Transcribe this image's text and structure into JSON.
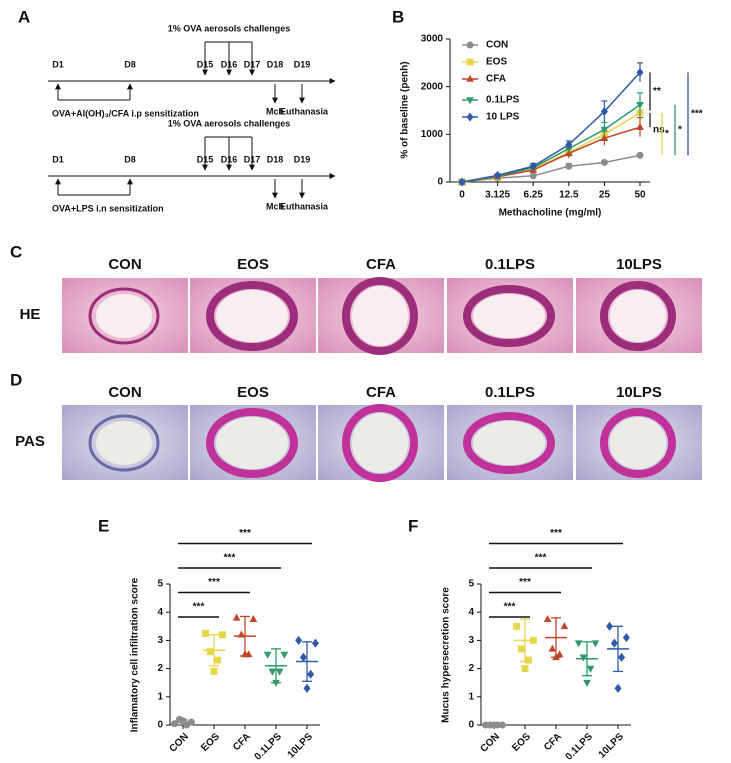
{
  "panel_labels": [
    "A",
    "B",
    "C",
    "D",
    "E",
    "F"
  ],
  "timelines": [
    {
      "days": [
        "D1",
        "D8",
        "D15",
        "D16",
        "D17",
        "D18",
        "D19"
      ],
      "challenge": "1% OVA aerosols challenges",
      "sensitization": "OVA+Al(OH)₃/CFA i.p sensitization",
      "readouts": [
        "Mch",
        "Euthanasia"
      ]
    },
    {
      "days": [
        "D1",
        "D8",
        "D15",
        "D16",
        "D17",
        "D18",
        "D19"
      ],
      "challenge": "1% OVA aerosols challenges",
      "sensitization": "OVA+LPS i.n sensitization",
      "readouts": [
        "Mch",
        "Euthanasia"
      ]
    }
  ],
  "histology": {
    "columns": [
      "CON",
      "EOS",
      "CFA",
      "0.1LPS",
      "10LPS"
    ],
    "rows": [
      "HE",
      "PAS"
    ]
  },
  "chart_data": [
    {
      "type": "line",
      "ylabel": "% of baseline (penh)",
      "xlabel": "Methacholine (mg/ml)",
      "categories": [
        "0",
        "3.125",
        "6.25",
        "12.5",
        "25",
        "50"
      ],
      "ylim": [
        0,
        3000
      ],
      "yticks": [
        0,
        1000,
        2000,
        3000
      ],
      "legend": "top-left",
      "series": [
        {
          "name": "CON",
          "color": "#8c8c8c",
          "marker": "circle",
          "values": [
            0,
            80,
            130,
            330,
            410,
            560
          ],
          "errors": [
            0,
            20,
            20,
            60,
            40,
            40
          ]
        },
        {
          "name": "EOS",
          "color": "#e6d64a",
          "marker": "square",
          "values": [
            0,
            100,
            280,
            620,
            1000,
            1450
          ],
          "errors": [
            0,
            30,
            50,
            100,
            120,
            200
          ]
        },
        {
          "name": "CFA",
          "color": "#c0462a",
          "marker": "triangle-up",
          "values": [
            0,
            110,
            250,
            600,
            920,
            1150
          ],
          "errors": [
            0,
            30,
            50,
            100,
            150,
            200
          ]
        },
        {
          "name": "0.1LPS",
          "color": "#2e9a6a",
          "marker": "triangle-down",
          "values": [
            0,
            120,
            300,
            700,
            1100,
            1620
          ],
          "errors": [
            0,
            30,
            50,
            80,
            150,
            250
          ]
        },
        {
          "name": "10 LPS",
          "color": "#2f5aa8",
          "marker": "diamond",
          "values": [
            0,
            140,
            330,
            780,
            1480,
            2300
          ],
          "errors": [
            0,
            30,
            60,
            80,
            220,
            200
          ]
        }
      ],
      "annotations": [
        {
          "text": "**",
          "y": [
            1500,
            2300
          ],
          "color": "#222222"
        },
        {
          "text": "ns",
          "y": [
            1150,
            1450
          ],
          "color": "#222222"
        },
        {
          "text": "*",
          "y": [
            560,
            1450
          ],
          "color": "#e6d64a"
        },
        {
          "text": "*",
          "y": [
            560,
            1620
          ],
          "color": "#2e9a6a"
        },
        {
          "text": "***",
          "y": [
            560,
            2300
          ],
          "color": "#2f5aa8"
        }
      ]
    },
    {
      "type": "dotplot",
      "ylabel": "Inflamatory cell infiltration score",
      "categories": [
        "CON",
        "EOS",
        "CFA",
        "0.1LPS",
        "10LPS"
      ],
      "colors": [
        "#8c8c8c",
        "#e6d64a",
        "#c0462a",
        "#2e9a6a",
        "#2f5aa8"
      ],
      "markers": [
        "circle",
        "square",
        "triangle-up",
        "triangle-down",
        "diamond"
      ],
      "ylim": [
        0,
        5
      ],
      "yticks": [
        0,
        1,
        2,
        3,
        4,
        5
      ],
      "points": [
        [
          0.05,
          0.1,
          0.2,
          0.0,
          0.15
        ],
        [
          3.25,
          3.2,
          2.6,
          2.3,
          1.9
        ],
        [
          3.8,
          3.75,
          3.2,
          2.5,
          2.5
        ],
        [
          2.5,
          2.5,
          1.9,
          1.9,
          1.5
        ],
        [
          3.0,
          2.9,
          2.4,
          1.8,
          1.3
        ]
      ],
      "means": [
        0.1,
        2.65,
        3.15,
        2.1,
        2.25
      ],
      "sds": [
        0.08,
        0.55,
        0.7,
        0.6,
        0.7
      ],
      "comparisons": [
        {
          "from": 0,
          "to": 1,
          "text": "***"
        },
        {
          "from": 0,
          "to": 2,
          "text": "***"
        },
        {
          "from": 0,
          "to": 3,
          "text": "***"
        },
        {
          "from": 0,
          "to": 4,
          "text": "***"
        }
      ]
    },
    {
      "type": "dotplot",
      "ylabel": "Mucus hypersecretion score",
      "categories": [
        "CON",
        "EOS",
        "CFA",
        "0.1LPS",
        "10LPS"
      ],
      "colors": [
        "#8c8c8c",
        "#e6d64a",
        "#c0462a",
        "#2e9a6a",
        "#2f5aa8"
      ],
      "markers": [
        "circle",
        "square",
        "triangle-up",
        "triangle-down",
        "diamond"
      ],
      "ylim": [
        0,
        5
      ],
      "yticks": [
        0,
        1,
        2,
        3,
        4,
        5
      ],
      "points": [
        [
          0,
          0,
          0,
          0,
          0
        ],
        [
          3.5,
          3.0,
          2.7,
          2.3,
          2.0
        ],
        [
          3.75,
          3.5,
          2.7,
          2.5,
          2.4
        ],
        [
          2.9,
          2.9,
          2.4,
          2.0,
          1.5
        ],
        [
          3.5,
          3.1,
          2.9,
          2.4,
          1.3
        ]
      ],
      "means": [
        0,
        3.0,
        3.1,
        2.35,
        2.7
      ],
      "sds": [
        0,
        0.75,
        0.7,
        0.6,
        0.8
      ],
      "comparisons": [
        {
          "from": 0,
          "to": 1,
          "text": "***"
        },
        {
          "from": 0,
          "to": 2,
          "text": "***"
        },
        {
          "from": 0,
          "to": 3,
          "text": "***"
        },
        {
          "from": 0,
          "to": 4,
          "text": "***"
        }
      ]
    }
  ]
}
